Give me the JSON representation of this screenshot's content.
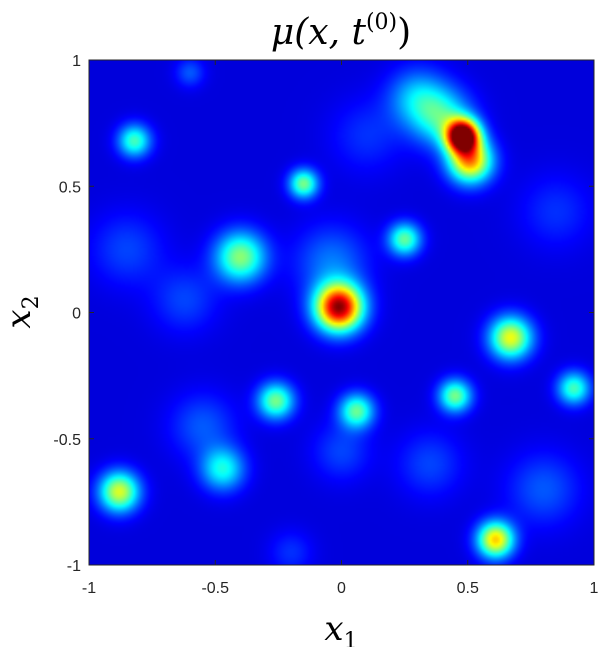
{
  "chart_data": {
    "type": "heatmap",
    "title": {
      "main": "μ(x, t",
      "superscript": "(0)",
      "close": ")"
    },
    "xlabel": {
      "base": "x",
      "sub": "1"
    },
    "ylabel": {
      "base": "x",
      "sub": "2"
    },
    "xlim": [
      -1,
      1
    ],
    "ylim": [
      -1,
      1
    ],
    "xticks": [
      -1,
      -0.5,
      0,
      0.5,
      1
    ],
    "yticks": [
      -1,
      -0.5,
      0,
      0.5,
      1
    ],
    "xtick_labels": [
      "-1",
      "-0.5",
      "0",
      "0.5",
      "1"
    ],
    "ytick_labels": [
      "-1",
      "-0.5",
      "0",
      "0.5",
      "1"
    ],
    "colormap": "jet",
    "grid": false,
    "peaks": [
      {
        "x": 0.48,
        "y": 0.7,
        "amplitude": 1.0,
        "sigma": 0.045
      },
      {
        "x": 0.51,
        "y": 0.6,
        "amplitude": 0.62,
        "sigma": 0.06
      },
      {
        "x": 0.4,
        "y": 0.77,
        "amplitude": 0.3,
        "sigma": 0.08
      },
      {
        "x": 0.3,
        "y": 0.85,
        "amplitude": 0.22,
        "sigma": 0.08
      },
      {
        "x": -0.01,
        "y": 0.02,
        "amplitude": 0.88,
        "sigma": 0.065
      },
      {
        "x": 0.67,
        "y": -0.1,
        "amplitude": 0.52,
        "sigma": 0.058
      },
      {
        "x": 0.61,
        "y": -0.9,
        "amplitude": 0.58,
        "sigma": 0.05
      },
      {
        "x": -0.88,
        "y": -0.71,
        "amplitude": 0.5,
        "sigma": 0.055
      },
      {
        "x": -0.4,
        "y": 0.22,
        "amplitude": 0.42,
        "sigma": 0.07
      },
      {
        "x": -0.82,
        "y": 0.68,
        "amplitude": 0.35,
        "sigma": 0.045
      },
      {
        "x": -0.15,
        "y": 0.51,
        "amplitude": 0.4,
        "sigma": 0.04
      },
      {
        "x": 0.25,
        "y": 0.29,
        "amplitude": 0.38,
        "sigma": 0.045
      },
      {
        "x": -0.26,
        "y": -0.35,
        "amplitude": 0.4,
        "sigma": 0.05
      },
      {
        "x": 0.06,
        "y": -0.39,
        "amplitude": 0.38,
        "sigma": 0.048
      },
      {
        "x": 0.45,
        "y": -0.33,
        "amplitude": 0.4,
        "sigma": 0.045
      },
      {
        "x": 0.92,
        "y": -0.3,
        "amplitude": 0.35,
        "sigma": 0.045
      },
      {
        "x": -0.47,
        "y": -0.62,
        "amplitude": 0.3,
        "sigma": 0.06
      },
      {
        "x": -0.04,
        "y": 0.2,
        "amplitude": 0.15,
        "sigma": 0.1
      },
      {
        "x": -0.55,
        "y": -0.45,
        "amplitude": 0.12,
        "sigma": 0.09
      },
      {
        "x": 0.0,
        "y": -0.55,
        "amplitude": 0.1,
        "sigma": 0.08
      },
      {
        "x": -0.62,
        "y": 0.05,
        "amplitude": 0.1,
        "sigma": 0.09
      },
      {
        "x": 0.8,
        "y": -0.7,
        "amplitude": 0.12,
        "sigma": 0.1
      },
      {
        "x": 0.35,
        "y": -0.6,
        "amplitude": 0.1,
        "sigma": 0.09
      },
      {
        "x": -0.85,
        "y": 0.25,
        "amplitude": 0.1,
        "sigma": 0.1
      },
      {
        "x": 0.85,
        "y": 0.4,
        "amplitude": 0.08,
        "sigma": 0.1
      },
      {
        "x": -0.6,
        "y": 0.95,
        "amplitude": 0.12,
        "sigma": 0.04
      },
      {
        "x": -0.2,
        "y": -0.95,
        "amplitude": 0.08,
        "sigma": 0.06
      },
      {
        "x": 0.1,
        "y": 0.7,
        "amplitude": 0.08,
        "sigma": 0.1
      }
    ],
    "background_level": 0.09
  }
}
